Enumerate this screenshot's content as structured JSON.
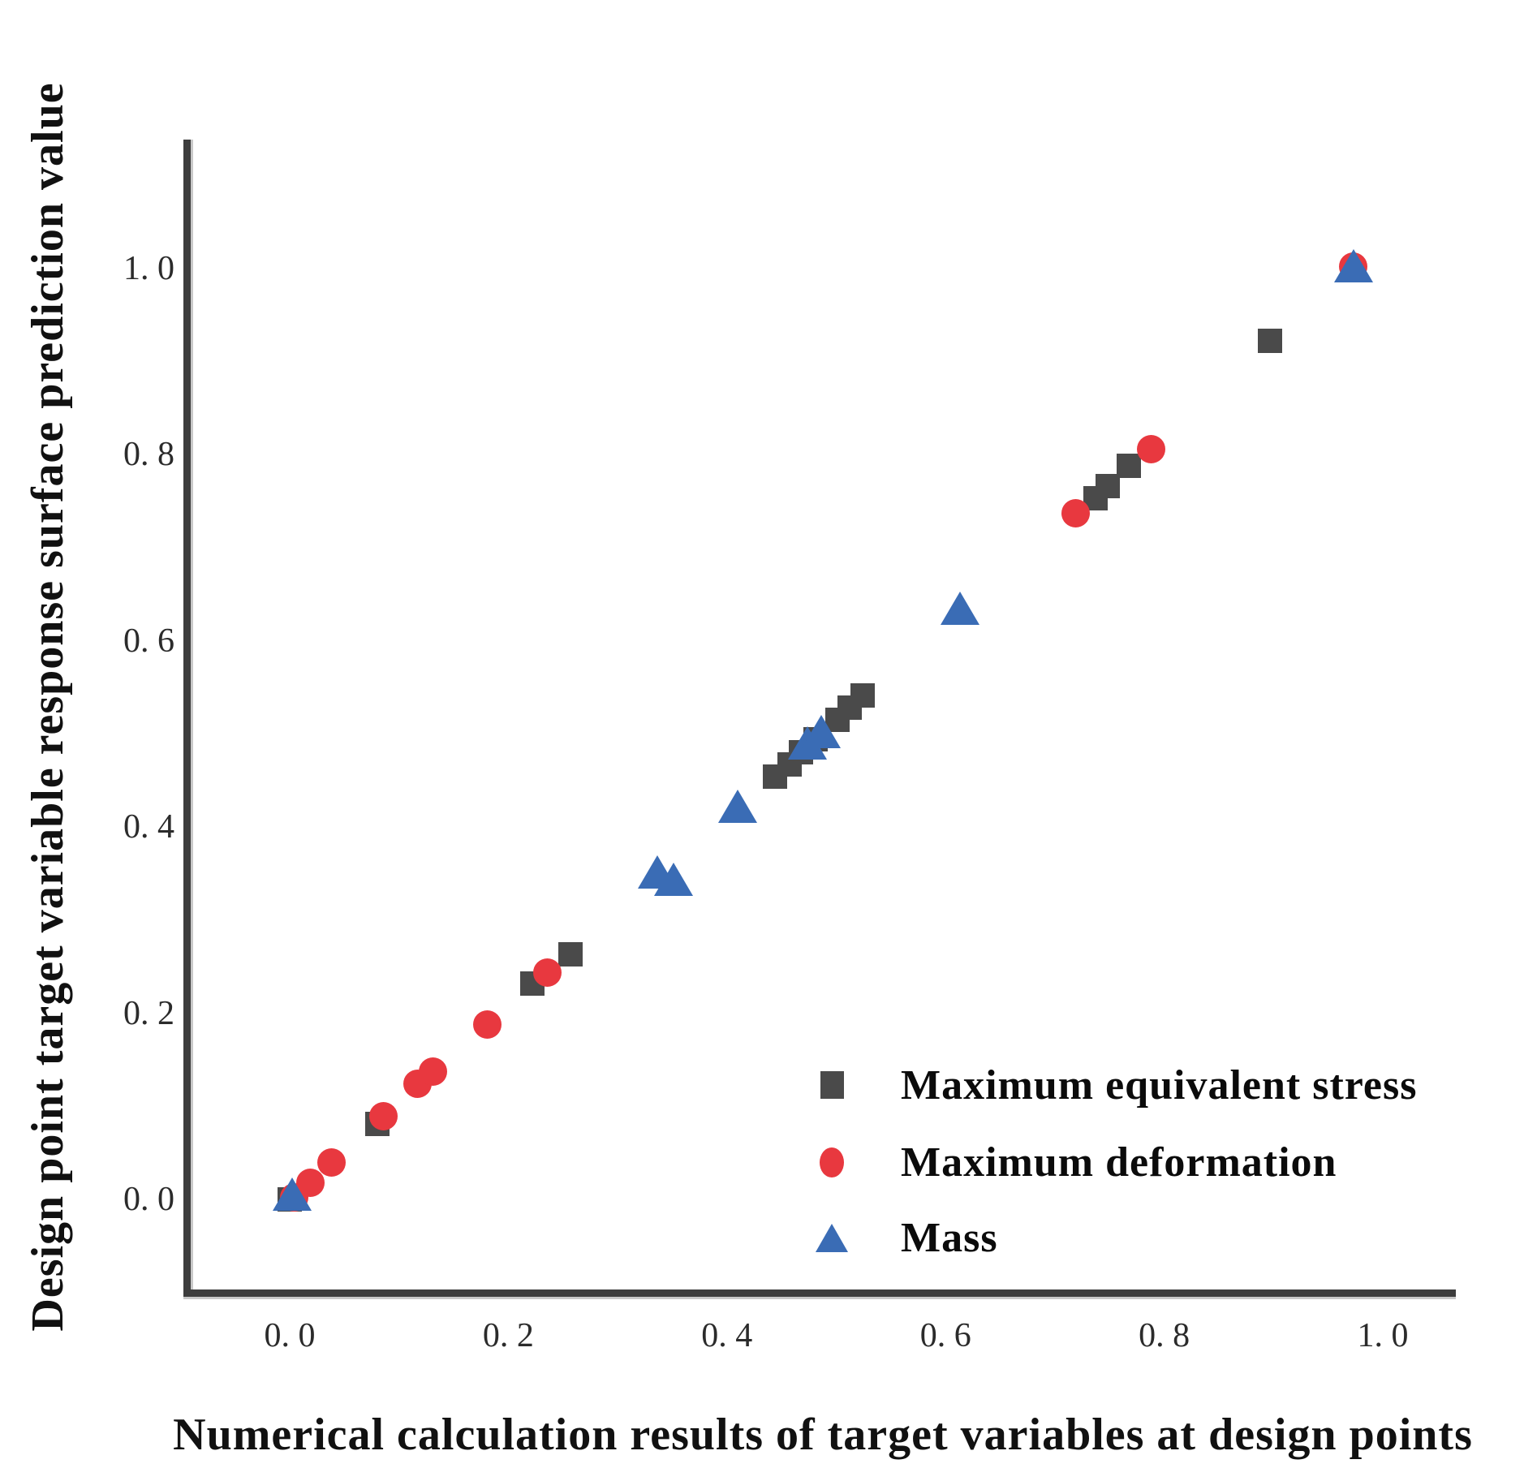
{
  "chart_data": {
    "type": "scatter",
    "title": "",
    "xlabel": "Numerical calculation results of target variables at design points",
    "ylabel": "Design point target variable response surface prediction value",
    "xlim": [
      -0.1,
      1.07
    ],
    "ylim": [
      -0.1,
      1.14
    ],
    "grid": false,
    "legend_position": "lower right",
    "x_ticks": {
      "values": [
        0.0,
        0.2,
        0.4,
        0.6,
        0.8,
        1.0
      ],
      "labels": [
        "0. 0",
        "0. 2",
        "0. 4",
        "0. 6",
        "0. 8",
        "1. 0"
      ]
    },
    "y_ticks": {
      "values": [
        0.0,
        0.2,
        0.4,
        0.6,
        0.8,
        1.0
      ],
      "labels": [
        "0. 0",
        "0. 2",
        "0. 4",
        "0. 6",
        "0. 8",
        "1. 0"
      ]
    },
    "series": [
      {
        "name": "Maximum equivalent stress",
        "marker": "square",
        "color": "#4a4a4a",
        "points": [
          [
            0.0,
            0.0
          ],
          [
            0.08,
            0.081
          ],
          [
            0.222,
            0.232
          ],
          [
            0.257,
            0.263
          ],
          [
            0.444,
            0.454
          ],
          [
            0.457,
            0.467
          ],
          [
            0.468,
            0.48
          ],
          [
            0.481,
            0.494
          ],
          [
            0.501,
            0.515
          ],
          [
            0.512,
            0.528
          ],
          [
            0.524,
            0.541
          ],
          [
            0.737,
            0.753
          ],
          [
            0.748,
            0.766
          ],
          [
            0.768,
            0.788
          ],
          [
            0.897,
            0.922
          ]
        ]
      },
      {
        "name": "Maximum deformation",
        "marker": "circle",
        "color": "#e8383f",
        "points": [
          [
            0.004,
            0.002
          ],
          [
            0.019,
            0.018
          ],
          [
            0.038,
            0.04
          ],
          [
            0.086,
            0.089
          ],
          [
            0.117,
            0.124
          ],
          [
            0.131,
            0.137
          ],
          [
            0.181,
            0.188
          ],
          [
            0.236,
            0.244
          ],
          [
            0.719,
            0.737
          ],
          [
            0.788,
            0.806
          ],
          [
            0.973,
            1.002
          ]
        ]
      },
      {
        "name": "Mass",
        "marker": "triangle",
        "color": "#3a6cb5",
        "points": [
          [
            0.002,
            0.006
          ],
          [
            0.336,
            0.352
          ],
          [
            0.351,
            0.344
          ],
          [
            0.41,
            0.422
          ],
          [
            0.474,
            0.49
          ],
          [
            0.486,
            0.503
          ],
          [
            0.613,
            0.635
          ],
          [
            0.973,
            1.003
          ]
        ]
      }
    ]
  }
}
